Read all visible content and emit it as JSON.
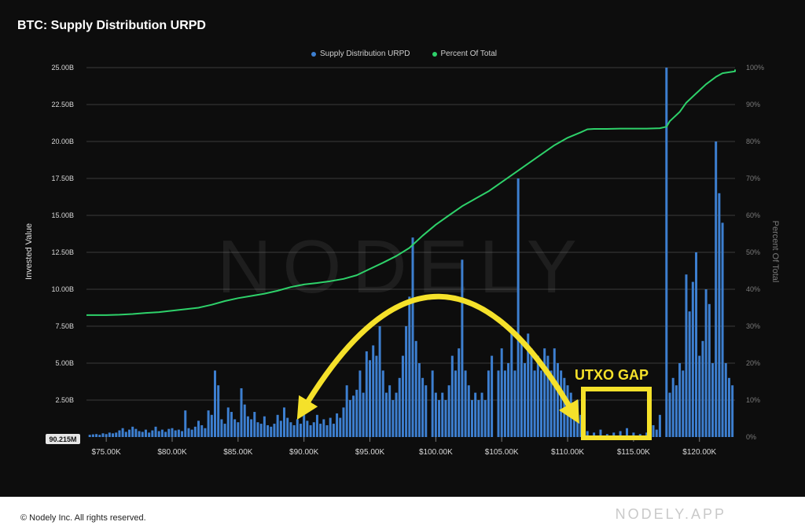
{
  "header": {
    "title": "BTC: Supply Distribution URPD"
  },
  "legend": {
    "series_1": "Supply Distribution URPD",
    "series_2": "Percent Of Total"
  },
  "watermark": "NODELY",
  "annotation": {
    "gap_label": "UTXO GAP"
  },
  "min_value_label": "90.215M",
  "footer": {
    "copyright": "© Nodely Inc. All rights reserved.",
    "brand": "NODELY.APP"
  },
  "colors": {
    "background": "#0d0d0d",
    "bars": "#3d7fd0",
    "line": "#2ed16a",
    "annotation": "#f5e12a",
    "grid": "#3a3a3a",
    "axis_text": "#d8d8d8"
  },
  "chart_data": {
    "type": "bar",
    "title": "BTC: Supply Distribution URPD",
    "ylabel": "Invested Value",
    "y2label": "Percent Of Total",
    "xlim": [
      73500,
      122700
    ],
    "ylim": [
      0,
      25000000000
    ],
    "y2lim": [
      0,
      100
    ],
    "grid": true,
    "legend_position": "top-center",
    "x_ticks": [
      "$75.00K",
      "$80.00K",
      "$85.00K",
      "$90.00K",
      "$95.00K",
      "$100.00K",
      "$105.00K",
      "$110.00K",
      "$115.00K",
      "$120.00K"
    ],
    "x_tick_values": [
      75000,
      80000,
      85000,
      90000,
      95000,
      100000,
      105000,
      110000,
      115000,
      120000
    ],
    "y_ticks": [
      "2.50B",
      "5.00B",
      "7.50B",
      "10.00B",
      "12.50B",
      "15.00B",
      "17.50B",
      "20.00B",
      "22.50B",
      "25.00B"
    ],
    "y_tick_values": [
      2500000000,
      5000000000,
      7500000000,
      10000000000,
      12500000000,
      15000000000,
      17500000000,
      20000000000,
      22500000000,
      25000000000
    ],
    "y2_ticks": [
      "0%",
      "10%",
      "20%",
      "30%",
      "40%",
      "50%",
      "60%",
      "70%",
      "80%",
      "90%",
      "100%"
    ],
    "y2_tick_values": [
      0,
      10,
      20,
      30,
      40,
      50,
      60,
      70,
      80,
      90,
      100
    ],
    "series": [
      {
        "name": "Supply Distribution URPD",
        "type": "bar",
        "bin_width": 250,
        "points": [
          [
            73750,
            0.15
          ],
          [
            74000,
            0.18
          ],
          [
            74250,
            0.2
          ],
          [
            74500,
            0.15
          ],
          [
            74750,
            0.25
          ],
          [
            75000,
            0.2
          ],
          [
            75250,
            0.3
          ],
          [
            75500,
            0.25
          ],
          [
            75750,
            0.3
          ],
          [
            76000,
            0.45
          ],
          [
            76250,
            0.6
          ],
          [
            76500,
            0.35
          ],
          [
            76750,
            0.5
          ],
          [
            77000,
            0.7
          ],
          [
            77250,
            0.55
          ],
          [
            77500,
            0.4
          ],
          [
            77750,
            0.35
          ],
          [
            78000,
            0.5
          ],
          [
            78250,
            0.3
          ],
          [
            78500,
            0.45
          ],
          [
            78750,
            0.7
          ],
          [
            79000,
            0.4
          ],
          [
            79250,
            0.5
          ],
          [
            79500,
            0.35
          ],
          [
            79750,
            0.55
          ],
          [
            80000,
            0.6
          ],
          [
            80250,
            0.45
          ],
          [
            80500,
            0.5
          ],
          [
            80750,
            0.4
          ],
          [
            81000,
            1.8
          ],
          [
            81250,
            0.6
          ],
          [
            81500,
            0.5
          ],
          [
            81750,
            0.7
          ],
          [
            82000,
            1.1
          ],
          [
            82250,
            0.8
          ],
          [
            82500,
            0.6
          ],
          [
            82750,
            1.8
          ],
          [
            83000,
            1.5
          ],
          [
            83250,
            4.5
          ],
          [
            83500,
            3.5
          ],
          [
            83750,
            1.2
          ],
          [
            84000,
            0.9
          ],
          [
            84250,
            2.0
          ],
          [
            84500,
            1.7
          ],
          [
            84750,
            1.2
          ],
          [
            85000,
            1.0
          ],
          [
            85250,
            3.3
          ],
          [
            85500,
            2.2
          ],
          [
            85750,
            1.4
          ],
          [
            86000,
            1.2
          ],
          [
            86250,
            1.7
          ],
          [
            86500,
            1.0
          ],
          [
            86750,
            0.9
          ],
          [
            87000,
            1.4
          ],
          [
            87250,
            0.8
          ],
          [
            87500,
            0.7
          ],
          [
            87750,
            0.9
          ],
          [
            88000,
            1.5
          ],
          [
            88250,
            1.1
          ],
          [
            88500,
            2.0
          ],
          [
            88750,
            1.3
          ],
          [
            89000,
            1.0
          ],
          [
            89250,
            0.8
          ],
          [
            89500,
            1.2
          ],
          [
            89750,
            0.9
          ],
          [
            90000,
            1.5
          ],
          [
            90250,
            1.1
          ],
          [
            90500,
            0.8
          ],
          [
            90750,
            1.0
          ],
          [
            91000,
            1.5
          ],
          [
            91250,
            0.9
          ],
          [
            91500,
            1.2
          ],
          [
            91750,
            0.8
          ],
          [
            92000,
            1.3
          ],
          [
            92250,
            0.9
          ],
          [
            92500,
            1.6
          ],
          [
            92750,
            1.3
          ],
          [
            93000,
            2.0
          ],
          [
            93250,
            3.5
          ],
          [
            93500,
            2.5
          ],
          [
            93750,
            2.8
          ],
          [
            94000,
            3.2
          ],
          [
            94250,
            4.5
          ],
          [
            94500,
            3.0
          ],
          [
            94750,
            5.8
          ],
          [
            95000,
            5.2
          ],
          [
            95250,
            6.2
          ],
          [
            95500,
            5.5
          ],
          [
            95750,
            7.5
          ],
          [
            96000,
            4.5
          ],
          [
            96250,
            3.0
          ],
          [
            96500,
            3.5
          ],
          [
            96750,
            2.5
          ],
          [
            97000,
            3.0
          ],
          [
            97250,
            4.0
          ],
          [
            97500,
            5.5
          ],
          [
            97750,
            7.5
          ],
          [
            98000,
            9.5
          ],
          [
            98250,
            13.5
          ],
          [
            98500,
            6.5
          ],
          [
            98750,
            5.0
          ],
          [
            99000,
            4.0
          ],
          [
            99250,
            3.5
          ],
          [
            99750,
            4.5
          ],
          [
            100000,
            3.0
          ],
          [
            100250,
            2.5
          ],
          [
            100500,
            3.0
          ],
          [
            100750,
            2.5
          ],
          [
            101000,
            3.5
          ],
          [
            101250,
            5.5
          ],
          [
            101500,
            4.5
          ],
          [
            101750,
            6.0
          ],
          [
            102000,
            12.0
          ],
          [
            102250,
            4.5
          ],
          [
            102500,
            3.5
          ],
          [
            102750,
            2.5
          ],
          [
            103000,
            3.0
          ],
          [
            103250,
            2.5
          ],
          [
            103500,
            3.0
          ],
          [
            103750,
            2.5
          ],
          [
            104000,
            4.5
          ],
          [
            104250,
            5.5
          ],
          [
            104750,
            4.5
          ],
          [
            105000,
            6.0
          ],
          [
            105250,
            4.5
          ],
          [
            105500,
            5.0
          ],
          [
            105750,
            7.0
          ],
          [
            106000,
            4.5
          ],
          [
            106250,
            17.5
          ],
          [
            106500,
            6.5
          ],
          [
            106750,
            5.0
          ],
          [
            107000,
            7.0
          ],
          [
            107250,
            6.0
          ],
          [
            107500,
            4.5
          ],
          [
            107750,
            5.5
          ],
          [
            108000,
            4.5
          ],
          [
            108250,
            6.0
          ],
          [
            108500,
            5.5
          ],
          [
            108750,
            4.5
          ],
          [
            109000,
            6.0
          ],
          [
            109250,
            5.0
          ],
          [
            109500,
            4.5
          ],
          [
            109750,
            4.0
          ],
          [
            110000,
            3.5
          ],
          [
            110250,
            3.0
          ],
          [
            110500,
            2.0
          ],
          [
            110750,
            2.5
          ],
          [
            111000,
            1.5
          ],
          [
            111250,
            1.0
          ],
          [
            111500,
            0.4
          ],
          [
            112000,
            0.3
          ],
          [
            112500,
            0.5
          ],
          [
            113000,
            0.2
          ],
          [
            113500,
            0.3
          ],
          [
            114000,
            0.4
          ],
          [
            114500,
            0.6
          ],
          [
            115000,
            0.3
          ],
          [
            115500,
            0.2
          ],
          [
            116000,
            0.3
          ],
          [
            116500,
            0.8
          ],
          [
            116750,
            0.5
          ],
          [
            117000,
            1.5
          ],
          [
            117500,
            25.0
          ],
          [
            117750,
            3.0
          ],
          [
            118000,
            4.0
          ],
          [
            118250,
            3.5
          ],
          [
            118500,
            5.0
          ],
          [
            118750,
            4.5
          ],
          [
            119000,
            11.0
          ],
          [
            119250,
            8.5
          ],
          [
            119500,
            10.5
          ],
          [
            119750,
            12.5
          ],
          [
            120000,
            5.5
          ],
          [
            120250,
            6.5
          ],
          [
            120500,
            10.0
          ],
          [
            120750,
            9.0
          ],
          [
            121000,
            5.0
          ],
          [
            121250,
            20.0
          ],
          [
            121500,
            16.5
          ],
          [
            121750,
            14.5
          ],
          [
            122000,
            5.0
          ],
          [
            122250,
            4.0
          ],
          [
            122500,
            3.5
          ],
          [
            122750,
            2.0
          ],
          [
            123000,
            1.5
          ],
          [
            123250,
            0.6
          ],
          [
            123500,
            0.3
          ],
          [
            123750,
            0.5
          ],
          [
            124000,
            0.8
          ],
          [
            124250,
            1.2
          ],
          [
            124500,
            1.0
          ],
          [
            124750,
            0.6
          ]
        ]
      },
      {
        "name": "Percent Of Total",
        "type": "line",
        "axis": "right",
        "points": [
          [
            73500,
            33.0
          ],
          [
            75000,
            33.0
          ],
          [
            76000,
            33.1
          ],
          [
            77000,
            33.3
          ],
          [
            78000,
            33.6
          ],
          [
            79000,
            33.8
          ],
          [
            80000,
            34.2
          ],
          [
            81000,
            34.6
          ],
          [
            82000,
            35.0
          ],
          [
            83000,
            35.8
          ],
          [
            84000,
            36.8
          ],
          [
            85000,
            37.6
          ],
          [
            86000,
            38.2
          ],
          [
            87000,
            38.8
          ],
          [
            88000,
            39.6
          ],
          [
            89000,
            40.6
          ],
          [
            90000,
            41.3
          ],
          [
            91000,
            41.7
          ],
          [
            92000,
            42.2
          ],
          [
            93000,
            42.8
          ],
          [
            94000,
            43.8
          ],
          [
            95000,
            45.5
          ],
          [
            96000,
            47.2
          ],
          [
            97000,
            49.0
          ],
          [
            98000,
            51.2
          ],
          [
            99000,
            54.5
          ],
          [
            100000,
            57.5
          ],
          [
            101000,
            60.0
          ],
          [
            102000,
            62.5
          ],
          [
            103000,
            64.5
          ],
          [
            104000,
            66.5
          ],
          [
            105000,
            69.0
          ],
          [
            106000,
            71.5
          ],
          [
            107000,
            74.0
          ],
          [
            108000,
            76.5
          ],
          [
            109000,
            79.0
          ],
          [
            110000,
            81.0
          ],
          [
            111000,
            82.5
          ],
          [
            111500,
            83.3
          ],
          [
            112000,
            83.4
          ],
          [
            113000,
            83.4
          ],
          [
            114000,
            83.5
          ],
          [
            115000,
            83.5
          ],
          [
            116000,
            83.5
          ],
          [
            117000,
            83.6
          ],
          [
            117500,
            84.0
          ],
          [
            117750,
            85.5
          ],
          [
            118500,
            88.0
          ],
          [
            119000,
            90.5
          ],
          [
            119750,
            93.0
          ],
          [
            120500,
            95.5
          ],
          [
            121250,
            97.5
          ],
          [
            121750,
            98.5
          ],
          [
            123000,
            99.0
          ],
          [
            124000,
            99.5
          ],
          [
            124750,
            100.0
          ]
        ]
      }
    ]
  }
}
